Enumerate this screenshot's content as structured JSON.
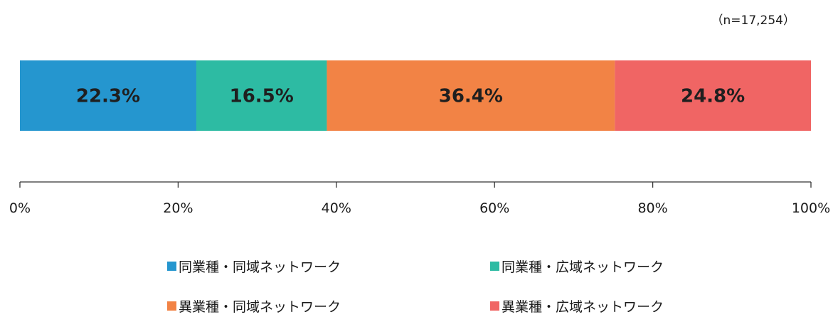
{
  "sample_note": "（n=17,254）",
  "chart_data": {
    "type": "bar",
    "orientation": "horizontal",
    "stacked": true,
    "percent_scale": true,
    "xlim": [
      0,
      100
    ],
    "xticks": [
      "0%",
      "20%",
      "40%",
      "60%",
      "80%",
      "100%"
    ],
    "grid": false,
    "legend_position": "bottom",
    "series": [
      {
        "name": "同業種・同域ネットワーク",
        "value": 22.3,
        "label": "22.3%",
        "color": "#2596cf"
      },
      {
        "name": "同業種・広域ネットワーク",
        "value": 16.5,
        "label": "16.5%",
        "color": "#2dbba3"
      },
      {
        "name": "異業種・同域ネットワーク",
        "value": 36.4,
        "label": "36.4%",
        "color": "#f28345"
      },
      {
        "name": "異業種・広域ネットワーク",
        "value": 24.8,
        "label": "24.8%",
        "color": "#f06564"
      }
    ]
  }
}
